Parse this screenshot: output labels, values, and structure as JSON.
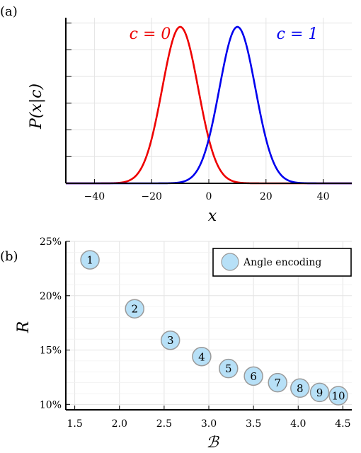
{
  "panel_a": {
    "label": "(a)",
    "xlabel": "x",
    "ylabel": "P(x|c)",
    "curve_labels": [
      "c = 0",
      "c = 1"
    ]
  },
  "panel_b": {
    "label": "(b)",
    "xlabel": "ℬ",
    "ylabel": "R",
    "legend": "Angle encoding"
  },
  "chart_data": [
    {
      "type": "line",
      "xlim": [
        -50,
        50
      ],
      "x_ticks": [
        -40,
        -20,
        0,
        20,
        40
      ],
      "x_tick_labels": [
        "−40",
        "−20",
        "0",
        "20",
        "40"
      ],
      "y_tick_labels_shown": false,
      "grid": true,
      "series": [
        {
          "name": "c = 0",
          "color": "#ee0000",
          "mean": -10,
          "std": 6.3
        },
        {
          "name": "c = 1",
          "color": "#0000ee",
          "mean": 10,
          "std": 6.3
        }
      ]
    },
    {
      "type": "scatter",
      "xlim": [
        1.4,
        4.6
      ],
      "ylim": [
        9.5,
        25
      ],
      "x_ticks": [
        1.5,
        2.0,
        2.5,
        3.0,
        3.5,
        4.0,
        4.5
      ],
      "x_tick_labels": [
        "1.5",
        "2.0",
        "2.5",
        "3.0",
        "3.5",
        "4.0",
        "4.5"
      ],
      "y_ticks": [
        10,
        15,
        20,
        25
      ],
      "y_tick_labels": [
        "10%",
        "15%",
        "20%",
        "25%"
      ],
      "grid": true,
      "legend_position": "top-right",
      "marker_color": "#b7e0f7",
      "series": [
        {
          "name": "Angle encoding",
          "points": [
            {
              "label": "1",
              "x": 1.67,
              "y": 23.3
            },
            {
              "label": "2",
              "x": 2.17,
              "y": 18.8
            },
            {
              "label": "3",
              "x": 2.57,
              "y": 15.9
            },
            {
              "label": "4",
              "x": 2.92,
              "y": 14.4
            },
            {
              "label": "5",
              "x": 3.22,
              "y": 13.3
            },
            {
              "label": "6",
              "x": 3.5,
              "y": 12.6
            },
            {
              "label": "7",
              "x": 3.77,
              "y": 12.0
            },
            {
              "label": "8",
              "x": 4.02,
              "y": 11.5
            },
            {
              "label": "9",
              "x": 4.24,
              "y": 11.1
            },
            {
              "label": "10",
              "x": 4.45,
              "y": 10.8
            }
          ]
        }
      ]
    }
  ]
}
